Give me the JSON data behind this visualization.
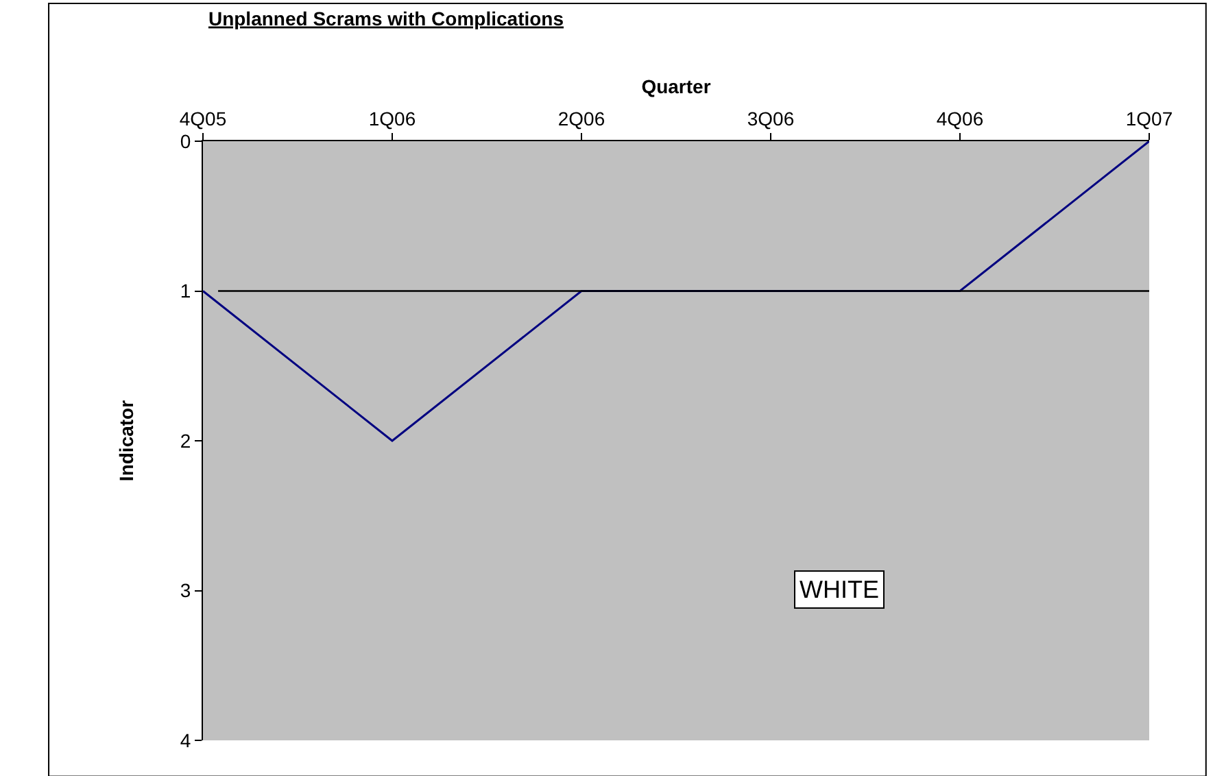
{
  "chart_data": {
    "type": "line",
    "title": "Unplanned Scrams with Complications",
    "xlabel": "Quarter",
    "ylabel": "Indicator",
    "categories": [
      "4Q05",
      "1Q06",
      "2Q06",
      "3Q06",
      "4Q06",
      "1Q07"
    ],
    "series": [
      {
        "color": "#000080",
        "values": [
          1,
          2,
          1,
          1,
          1,
          0
        ]
      }
    ],
    "ylim": [
      4,
      0
    ],
    "yticks": [
      0,
      1,
      2,
      3,
      4
    ],
    "grid": false,
    "marker": "none",
    "line_style": "solid",
    "ref_lines": [
      {
        "axis": "y",
        "value": 1,
        "color": "#000000"
      }
    ],
    "annotations": [
      "WHITE"
    ]
  }
}
